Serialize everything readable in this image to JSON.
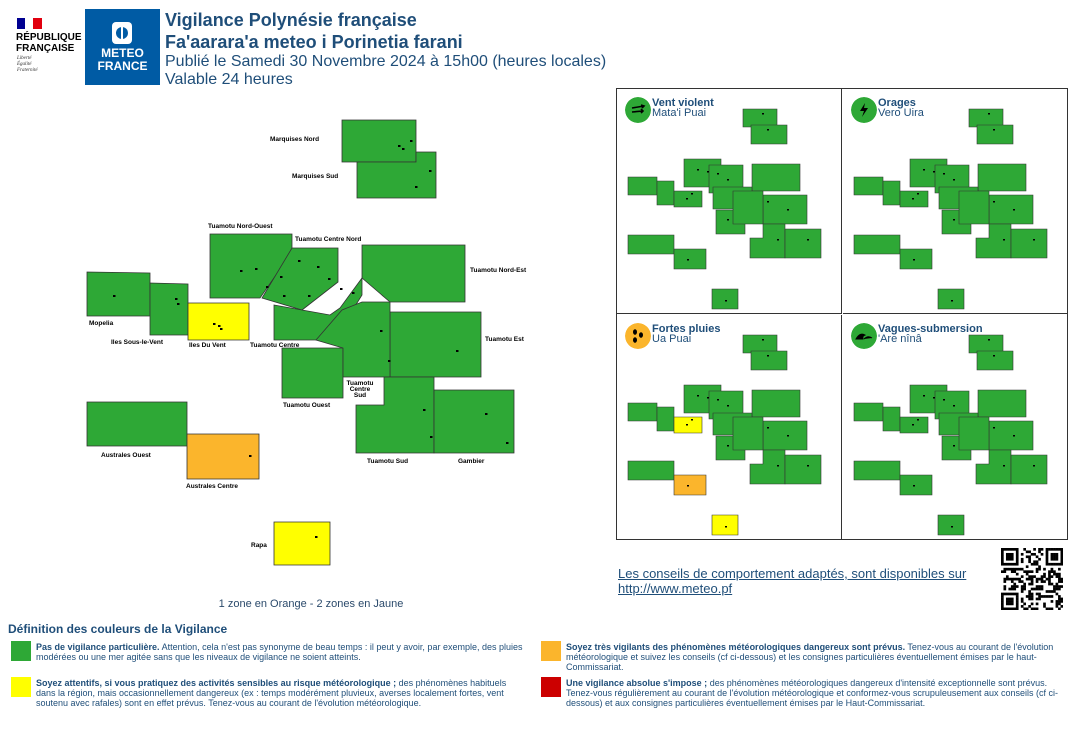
{
  "header": {
    "republique_line1": "RÉPUBLIQUE",
    "republique_line2": "FRANÇAISE",
    "motto1": "Liberté",
    "motto2": "Égalité",
    "motto3": "Fraternité",
    "meteo_line1": "METEO",
    "meteo_line2": "FRANCE",
    "title1": "Vigilance Polynésie française",
    "title2": "Fa'aarara'a meteo i Porinetia farani",
    "published": "Publié le Samedi 30 Novembre 2024 à 15h00 (heures locales)",
    "validity": "Valable 24 heures"
  },
  "colors": {
    "green": "#2ea836",
    "yellow": "#ffff00",
    "orange": "#fbb52c",
    "red": "#cc0000",
    "text_blue": "#1f4e79"
  },
  "zones": [
    {
      "name": "Marquises Nord",
      "level": "green"
    },
    {
      "name": "Marquises Sud",
      "level": "green"
    },
    {
      "name": "Tuamotu Nord-Ouest",
      "level": "green"
    },
    {
      "name": "Tuamotu Centre Nord",
      "level": "green"
    },
    {
      "name": "Tuamotu Nord-Est",
      "level": "green"
    },
    {
      "name": "Mopelia",
      "level": "green"
    },
    {
      "name": "Iles Sous-le-Vent",
      "level": "green"
    },
    {
      "name": "Iles Du Vent",
      "level": "yellow"
    },
    {
      "name": "Tuamotu Centre",
      "level": "green"
    },
    {
      "name": "Tuamotu Est",
      "level": "green"
    },
    {
      "name": "Tuamotu Ouest",
      "level": "green"
    },
    {
      "name": "Tuamotu Centre Sud",
      "level": "green"
    },
    {
      "name": "Australes Ouest",
      "level": "green"
    },
    {
      "name": "Australes Centre",
      "level": "orange"
    },
    {
      "name": "Tuamotu Sud",
      "level": "green"
    },
    {
      "name": "Gambier",
      "level": "green"
    },
    {
      "name": "Rapa",
      "level": "yellow"
    }
  ],
  "summary": "1 zone en Orange - 2 zones en Jaune",
  "phenomena": [
    {
      "title": "Vent violent",
      "subtitle": "Mata'i Puai",
      "icon": "wind-icon",
      "icon_color": "#2ea836"
    },
    {
      "title": "Orages",
      "subtitle": "Vero Uira",
      "icon": "lightning-icon",
      "icon_color": "#2ea836"
    },
    {
      "title": "Fortes pluies",
      "subtitle": "Ua Puai",
      "icon": "rain-icon",
      "icon_color": "#fbb52c"
    },
    {
      "title": "Vagues-submersion",
      "subtitle": "'Are nînâ",
      "icon": "wave-icon",
      "icon_color": "#2ea836"
    }
  ],
  "advice": {
    "text": "Les conseils de comportement adaptés, sont disponibles sur",
    "link": "http://www.meteo.pf"
  },
  "legend": {
    "title": "Définition des couleurs de la Vigilance",
    "items": [
      {
        "level": "green",
        "bold": "Pas de vigilance particulière.",
        "text": " Attention, cela n'est pas synonyme de beau temps : il peut y avoir, par exemple, des pluies modérées ou une mer agitée sans que les niveaux de vigilance ne soient atteints."
      },
      {
        "level": "orange",
        "bold": "Soyez très vigilants des phénomènes météorologiques dangereux sont prévus.",
        "text": " Tenez-vous au courant de l'évolution météorologique et suivez les conseils (cf ci-dessous) et les consignes particulières éventuellement émises par le haut-Commissariat."
      },
      {
        "level": "yellow",
        "bold": "Soyez attentifs, si vous pratiquez des activités sensibles au risque météorologique ;",
        "text": " des phénomènes habituels dans la région, mais occasionnellement dangereux (ex : temps modérément pluvieux, averses localement fortes, vent soutenu avec rafales) sont en effet prévus. Tenez-vous au courant de l'évolution météorologique."
      },
      {
        "level": "red",
        "bold": "Une vigilance absolue s'impose ;",
        "text": " des phénomènes météorologiques dangereux d'intensité exceptionnelle sont prévus. Tenez-vous régulièrement au courant de l'évolution météorologique et conformez-vous scrupuleusement aux conseils (cf ci-dessous) et aux consignes particulières éventuellement émises par le Haut-Commissariat."
      }
    ]
  }
}
